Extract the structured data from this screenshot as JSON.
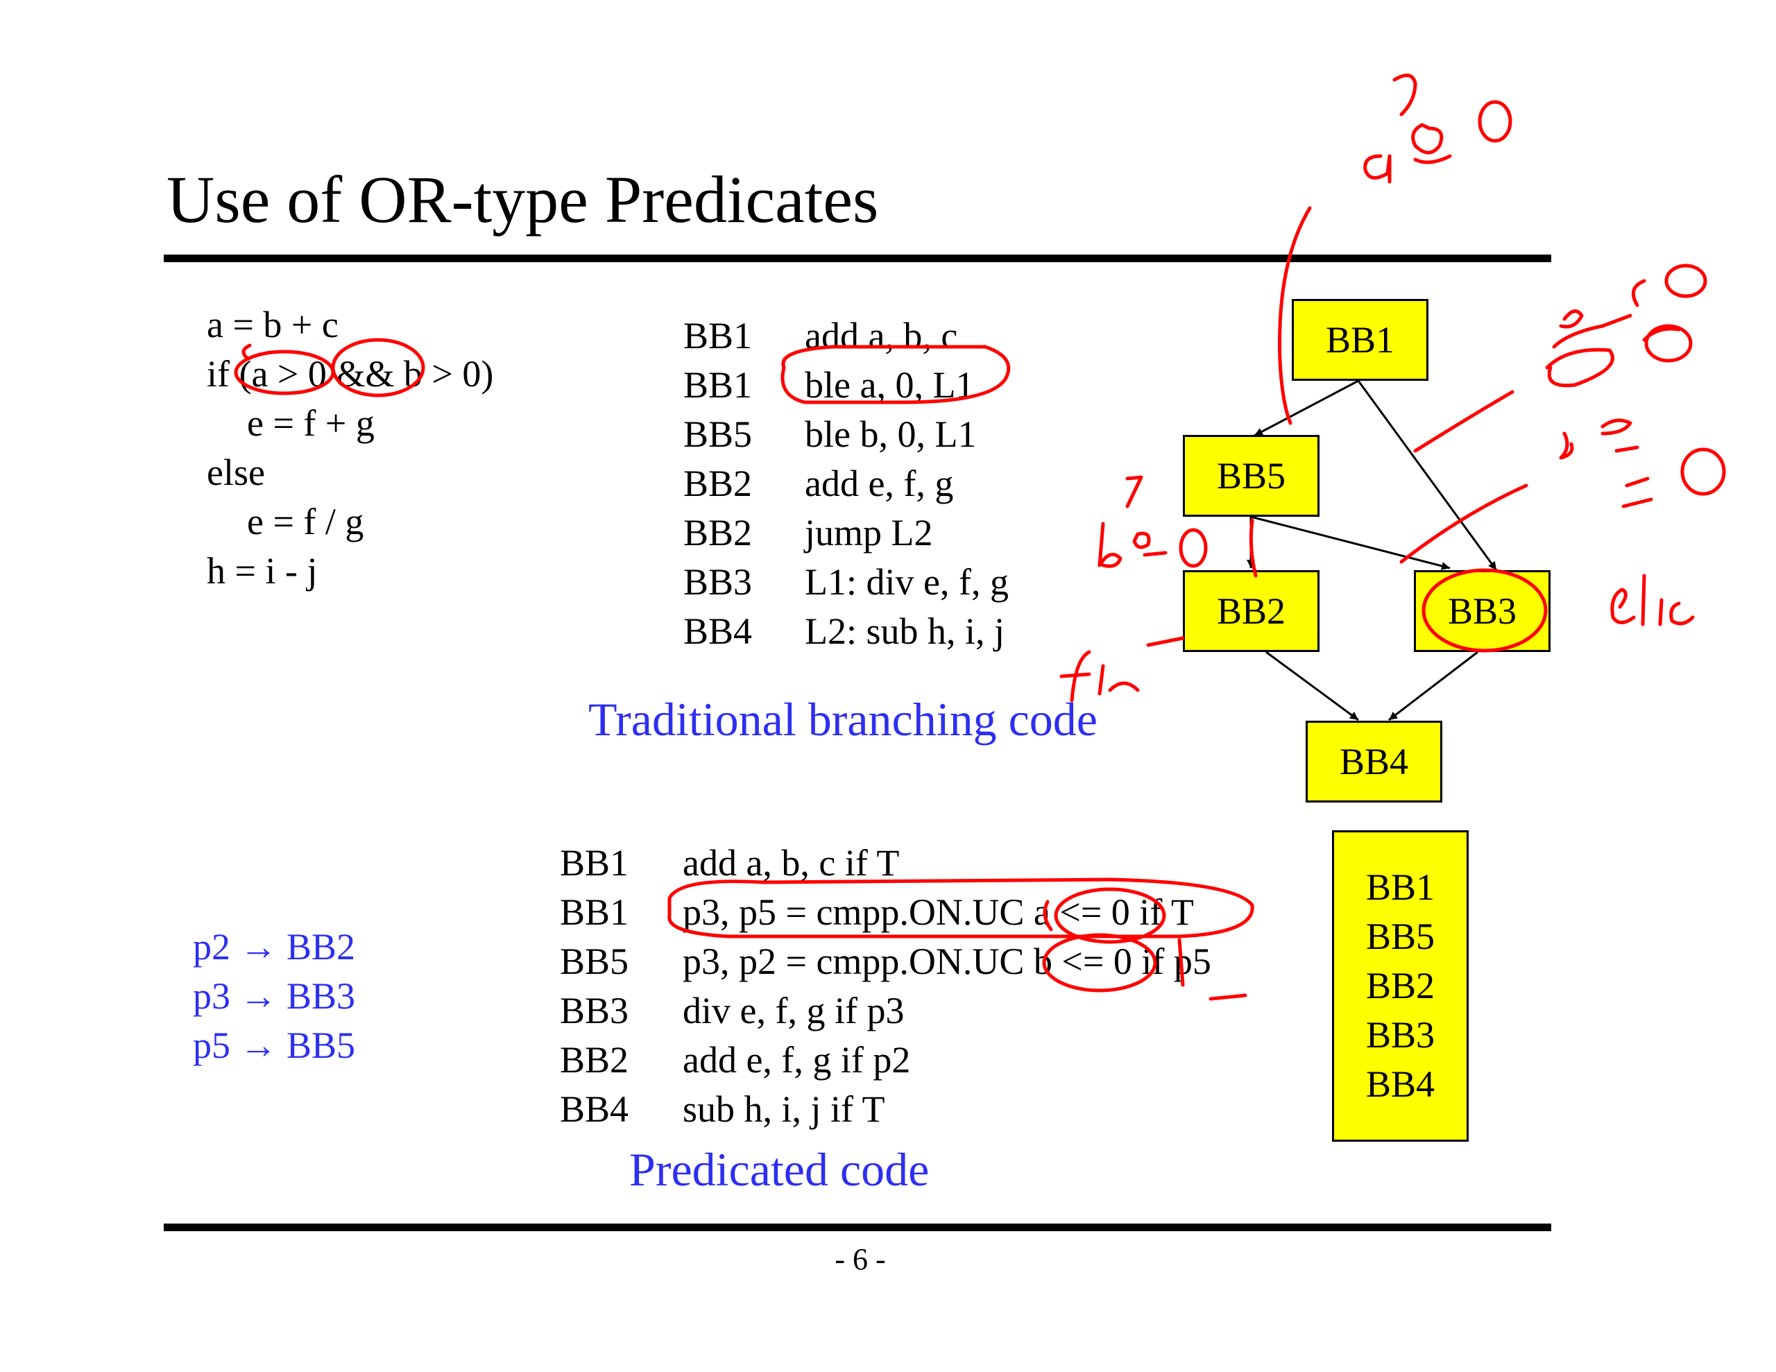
{
  "title": "Use of OR-type Predicates",
  "source_code": [
    "a = b + c",
    "if (a > 0 && b > 0)",
    "e = f + g",
    "else",
    "e = f / g",
    "h = i - j"
  ],
  "traditional": {
    "rows": [
      {
        "bb": "BB1",
        "instr": "add a, b, c"
      },
      {
        "bb": "BB1",
        "instr": "ble a, 0, L1"
      },
      {
        "bb": "BB5",
        "instr": "ble b, 0, L1"
      },
      {
        "bb": "BB2",
        "instr": "add e, f, g"
      },
      {
        "bb": "BB2",
        "instr": "jump L2"
      },
      {
        "bb": "BB3",
        "instr": "L1: div e, f, g"
      },
      {
        "bb": "BB4",
        "instr": "L2: sub h, i, j"
      }
    ],
    "caption": "Traditional branching code"
  },
  "cfg": {
    "blocks": [
      "BB1",
      "BB5",
      "BB2",
      "BB3",
      "BB4"
    ],
    "box_color": "#ffff00"
  },
  "predicated": {
    "rows": [
      {
        "bb": "BB1",
        "instr": "add a, b, c if T"
      },
      {
        "bb": "BB1",
        "instr": "p3, p5 = cmpp.ON.UC a <= 0 if T"
      },
      {
        "bb": "BB5",
        "instr": "p3, p2 = cmpp.ON.UC b <= 0 if p5"
      },
      {
        "bb": "BB3",
        "instr": "div e, f, g if p3"
      },
      {
        "bb": "BB2",
        "instr": "add e, f, g if p2"
      },
      {
        "bb": "BB4",
        "instr": "sub h, i, j if T"
      }
    ],
    "caption": "Predicated code"
  },
  "predicate_map": [
    "p2 → BB2",
    "p3 → BB3",
    "p5 → BB5"
  ],
  "merged_block": [
    "BB1",
    "BB5",
    "BB2",
    "BB3",
    "BB4"
  ],
  "page_number": "- 6 -",
  "colors": {
    "caption_blue": "#2d2ff0",
    "annotation_red": "#ff0000",
    "box_yellow": "#ffff00"
  },
  "annotations": {
    "a_cmp_b_zero": "a ≷ 0",
    "a_le_zero": "a ≤ 0",
    "b_le_zero": "b ≤ 0",
    "b_gt_zero": "b > 0",
    "else_note": "else",
    "fn_note": "f/n"
  }
}
